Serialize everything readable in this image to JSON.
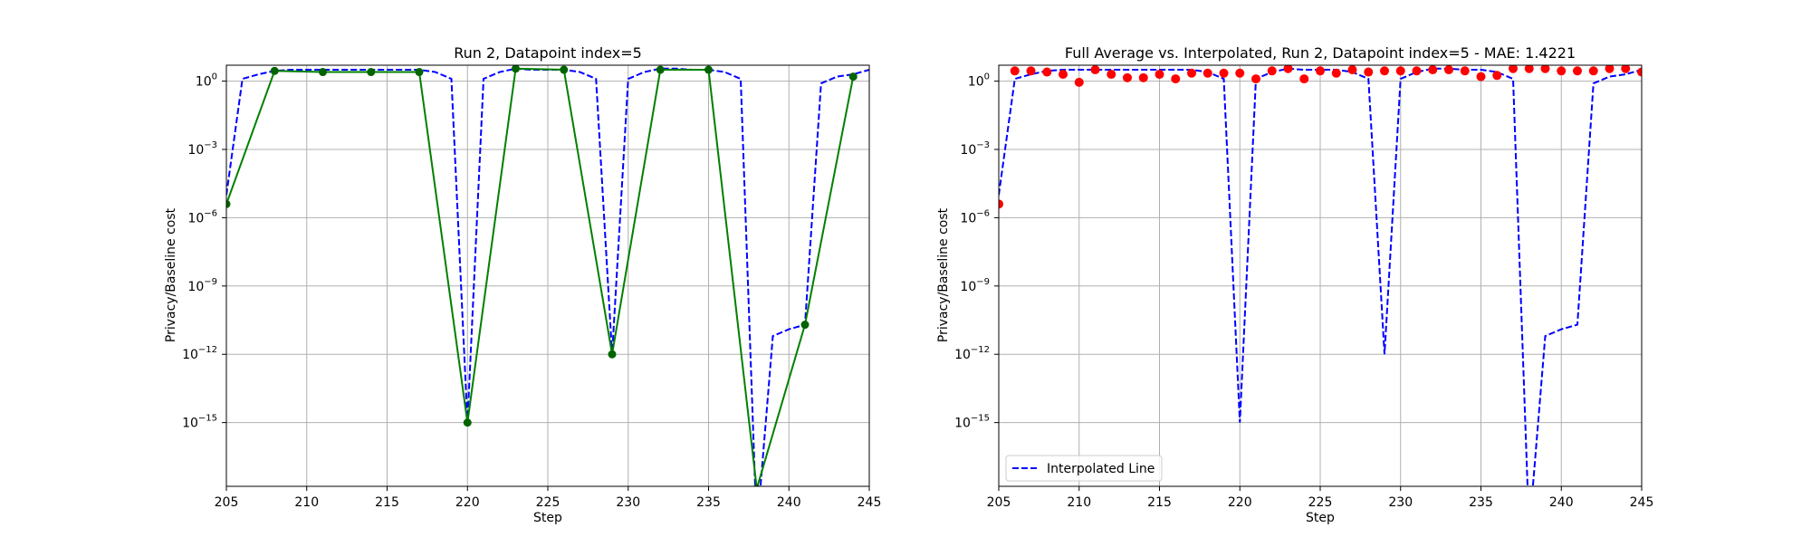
{
  "figure": {
    "background": "#ffffff"
  },
  "chart_data": [
    {
      "type": "line",
      "title": "Run 2, Datapoint index=5",
      "xlabel": "Step",
      "ylabel": "Privacy/Baseline cost",
      "xlim": [
        205,
        245
      ],
      "yscale": "log",
      "ylim_exp": [
        -17.8,
        0.7
      ],
      "xticks": [
        "205",
        "210",
        "215",
        "220",
        "225",
        "230",
        "235",
        "240",
        "245"
      ],
      "yticks": [
        {
          "exp": 0,
          "mant": "10",
          "sup": "0"
        },
        {
          "exp": -3,
          "mant": "10",
          "sup": "−3"
        },
        {
          "exp": -6,
          "mant": "10",
          "sup": "−6"
        },
        {
          "exp": -9,
          "mant": "10",
          "sup": "−9"
        },
        {
          "exp": -12,
          "mant": "10",
          "sup": "−12"
        },
        {
          "exp": -15,
          "mant": "10",
          "sup": "−15"
        }
      ],
      "grid": true,
      "series": [
        {
          "kind": "dashed-line",
          "color": "#0000ff",
          "x": [
            205,
            206,
            207,
            208,
            209,
            210,
            211,
            212,
            213,
            214,
            215,
            216,
            217,
            218,
            219,
            220,
            221,
            222,
            223,
            224,
            225,
            226,
            227,
            228,
            229,
            230,
            231,
            232,
            233,
            234,
            235,
            236,
            237,
            238,
            239,
            240,
            241,
            242,
            243,
            244,
            245
          ],
          "y_exp": [
            -5.0,
            0.1,
            0.3,
            0.45,
            0.5,
            0.5,
            0.5,
            0.5,
            0.5,
            0.5,
            0.5,
            0.5,
            0.5,
            0.4,
            0.1,
            -15.0,
            0.1,
            0.4,
            0.55,
            0.5,
            0.5,
            0.5,
            0.4,
            0.1,
            -12.0,
            0.1,
            0.4,
            0.55,
            0.55,
            0.5,
            0.5,
            0.4,
            0.1,
            -30,
            -11.2,
            -10.9,
            -10.7,
            -0.1,
            0.2,
            0.3,
            0.5
          ]
        },
        {
          "kind": "solid-line-markers",
          "color": "#008000",
          "marker_color": "#006400",
          "x": [
            205,
            208,
            211,
            214,
            217,
            220,
            223,
            226,
            229,
            232,
            235,
            238,
            241,
            244
          ],
          "y_exp": [
            -5.4,
            0.45,
            0.4,
            0.4,
            0.4,
            -15.0,
            0.55,
            0.5,
            -12.0,
            0.5,
            0.5,
            -17.9,
            -10.7,
            0.2
          ]
        }
      ]
    },
    {
      "type": "line",
      "title": "Full Average vs. Interpolated, Run 2, Datapoint index=5 - MAE: 1.4221",
      "xlabel": "Step",
      "ylabel": "Privacy/Baseline cost",
      "xlim": [
        205,
        245
      ],
      "yscale": "log",
      "ylim_exp": [
        -17.8,
        0.7
      ],
      "xticks": [
        "205",
        "210",
        "215",
        "220",
        "225",
        "230",
        "235",
        "240",
        "245"
      ],
      "yticks": [
        {
          "exp": 0,
          "mant": "10",
          "sup": "0"
        },
        {
          "exp": -3,
          "mant": "10",
          "sup": "−3"
        },
        {
          "exp": -6,
          "mant": "10",
          "sup": "−6"
        },
        {
          "exp": -9,
          "mant": "10",
          "sup": "−9"
        },
        {
          "exp": -12,
          "mant": "10",
          "sup": "−12"
        },
        {
          "exp": -15,
          "mant": "10",
          "sup": "−15"
        }
      ],
      "grid": true,
      "legend": {
        "position": "lower-left",
        "entries": [
          "Interpolated Line"
        ]
      },
      "series": [
        {
          "name": "Interpolated Line",
          "kind": "dashed-line",
          "color": "#0000ff",
          "x": [
            205,
            206,
            207,
            208,
            209,
            210,
            211,
            212,
            213,
            214,
            215,
            216,
            217,
            218,
            219,
            220,
            221,
            222,
            223,
            224,
            225,
            226,
            227,
            228,
            229,
            230,
            231,
            232,
            233,
            234,
            235,
            236,
            237,
            238,
            239,
            240,
            241,
            242,
            243,
            244,
            245
          ],
          "y_exp": [
            -5.0,
            0.1,
            0.3,
            0.45,
            0.5,
            0.5,
            0.5,
            0.5,
            0.5,
            0.5,
            0.5,
            0.5,
            0.5,
            0.4,
            0.1,
            -15.0,
            0.1,
            0.4,
            0.55,
            0.5,
            0.5,
            0.5,
            0.4,
            0.1,
            -12.0,
            0.1,
            0.4,
            0.55,
            0.55,
            0.5,
            0.5,
            0.4,
            0.1,
            -30,
            -11.2,
            -10.9,
            -10.7,
            -0.1,
            0.2,
            0.3,
            0.5
          ]
        },
        {
          "kind": "scatter",
          "color": "#ff0000",
          "x": [
            205,
            206,
            207,
            208,
            209,
            210,
            211,
            212,
            213,
            214,
            215,
            216,
            217,
            218,
            219,
            220,
            221,
            222,
            223,
            224,
            225,
            226,
            227,
            228,
            229,
            230,
            231,
            232,
            233,
            234,
            235,
            236,
            237,
            238,
            239,
            240,
            241,
            242,
            243,
            244,
            245
          ],
          "y_exp": [
            -5.4,
            0.45,
            0.45,
            0.4,
            0.3,
            -0.05,
            0.5,
            0.3,
            0.15,
            0.15,
            0.3,
            0.1,
            0.35,
            0.35,
            0.35,
            0.35,
            0.1,
            0.45,
            0.55,
            0.1,
            0.45,
            0.35,
            0.5,
            0.4,
            0.45,
            0.45,
            0.45,
            0.5,
            0.5,
            0.45,
            0.2,
            0.25,
            0.55,
            0.55,
            0.55,
            0.45,
            0.45,
            0.45,
            0.55,
            0.55,
            0.4
          ]
        }
      ]
    }
  ]
}
